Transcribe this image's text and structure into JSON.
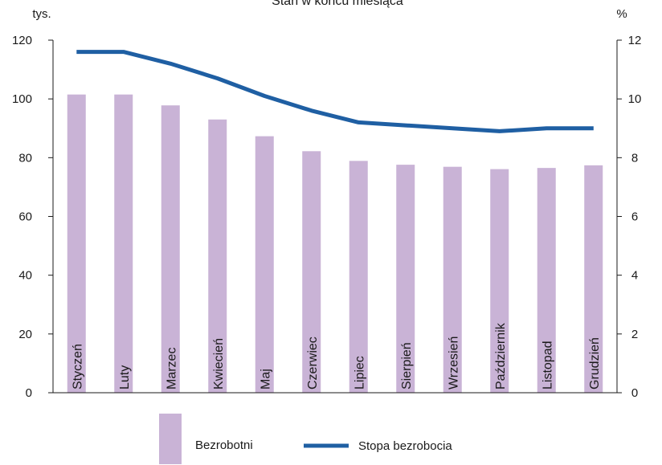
{
  "chart_data": {
    "type": "bar",
    "title": "Stan w końcu miesiąca",
    "ylabel_left": "tys.",
    "ylabel_right": "%",
    "categories": [
      "Styczeń",
      "Luty",
      "Marzec",
      "Kwiecień",
      "Maj",
      "Czerwiec",
      "Lipiec",
      "Sierpień",
      "Wrzesień",
      "Październik",
      "Listopad",
      "Grudzień"
    ],
    "ylim_left": [
      0,
      120
    ],
    "ylim_right": [
      0,
      12
    ],
    "yticks_left": [
      "0",
      "20",
      "40",
      "60",
      "80",
      "100",
      "120"
    ],
    "yticks_right": [
      "0",
      "2",
      "4",
      "6",
      "8",
      "10",
      "12"
    ],
    "grid": false,
    "legend_position": "bottom",
    "series": [
      {
        "name": "Bezrobotni",
        "type": "bar",
        "axis": "left",
        "color": "#c9b3d6",
        "values": [
          101.5,
          101.5,
          97.8,
          93.0,
          87.3,
          82.2,
          78.9,
          77.6,
          76.9,
          76.1,
          76.5,
          77.4
        ]
      },
      {
        "name": "Stopa bezrobocia",
        "type": "line",
        "axis": "right",
        "color": "#1f5fa3",
        "values": [
          11.6,
          11.6,
          11.2,
          10.7,
          10.1,
          9.6,
          9.2,
          9.1,
          9.0,
          8.9,
          9.0,
          9.0
        ]
      }
    ]
  }
}
